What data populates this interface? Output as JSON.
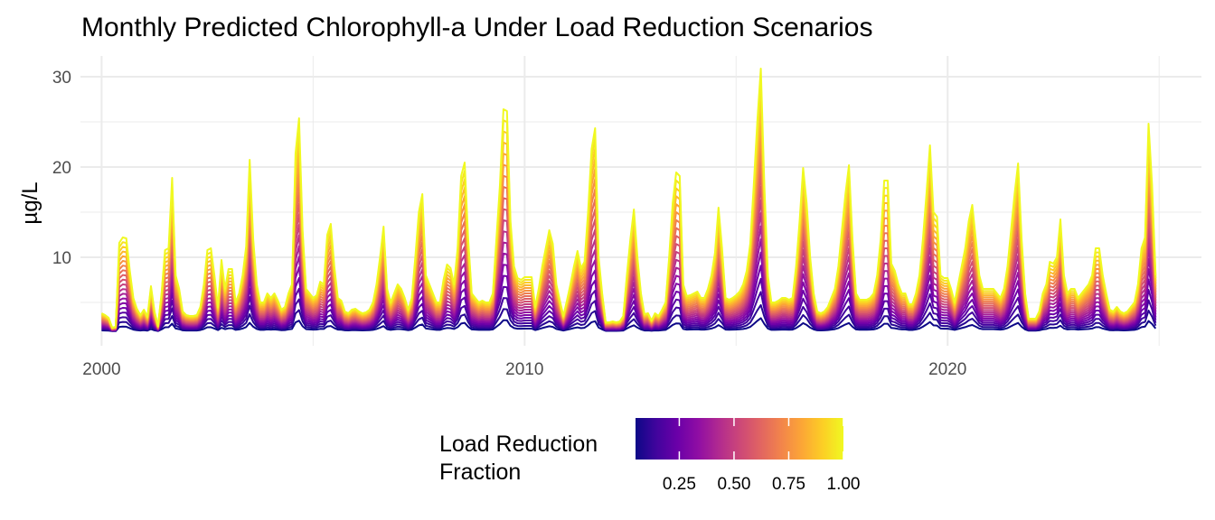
{
  "chart_data": {
    "type": "line",
    "title": "Monthly Predicted Chlorophyll-a Under Load Reduction Scenarios",
    "xlabel": "",
    "ylabel": "µg/L",
    "x_range": [
      1999.5,
      2026.0
    ],
    "ylim": [
      0.2,
      32.3
    ],
    "x_ticks": [
      {
        "value": 2000,
        "label": "2000"
      },
      {
        "value": 2010,
        "label": "2010"
      },
      {
        "value": 2020,
        "label": "2020"
      }
    ],
    "x_minor_ticks": [
      2005,
      2015,
      2025
    ],
    "y_ticks": [
      {
        "value": 10,
        "label": "10"
      },
      {
        "value": 20,
        "label": "20"
      },
      {
        "value": 30,
        "label": "30"
      }
    ],
    "y_minor_ticks": [
      5,
      15,
      25
    ],
    "grid": true,
    "x_start": 2000.0,
    "x_step_years": 0.08333333,
    "baseline_value": 1.8,
    "scenario_fractions": [
      0.05,
      0.1,
      0.15,
      0.2,
      0.25,
      0.3,
      0.35,
      0.4,
      0.45,
      0.5,
      0.55,
      0.6,
      0.65,
      0.7,
      0.75,
      0.8,
      0.85,
      0.9,
      0.95,
      1.0
    ],
    "scenario_model": "value(f) = baseline + (full_load - baseline) * f",
    "full_load_monthly_by_year": {
      "2000": [
        3.8,
        3.6,
        3.3,
        2.2,
        2.3,
        11.6,
        12.2,
        12.1,
        8.5,
        5.5,
        4.3,
        3.6
      ],
      "2001": [
        4.2,
        3.4,
        6.8,
        4.0,
        2.4,
        6.0,
        10.8,
        11.0,
        18.8,
        8.0,
        6.5,
        4.0
      ],
      "2002": [
        3.6,
        3.5,
        3.5,
        3.6,
        4.5,
        7.0,
        10.8,
        11.0,
        8.0,
        4.5,
        9.7,
        6.5
      ],
      "2003": [
        8.7,
        8.7,
        5.0,
        6.0,
        8.0,
        11.2,
        20.8,
        12.0,
        7.0,
        5.0,
        5.0,
        6.0
      ],
      "2004": [
        5.5,
        6.0,
        5.2,
        4.2,
        4.5,
        6.0,
        7.0,
        21.5,
        25.4,
        13.0,
        6.5,
        6.0
      ],
      "2005": [
        5.5,
        5.8,
        7.3,
        7.0,
        12.5,
        13.7,
        9.0,
        5.5,
        5.2,
        4.0,
        3.8,
        4.2
      ],
      "2006": [
        4.3,
        4.0,
        3.8,
        3.9,
        4.2,
        5.0,
        7.0,
        10.0,
        13.4,
        6.5,
        5.0,
        6.0
      ],
      "2007": [
        7.0,
        6.5,
        5.5,
        4.2,
        5.5,
        10.0,
        15.0,
        17.0,
        8.0,
        7.0,
        6.0,
        5.0
      ],
      "2008": [
        5.0,
        7.5,
        9.2,
        8.8,
        7.0,
        11.0,
        19.0,
        20.5,
        12.0,
        6.0,
        5.5,
        5.0
      ],
      "2009": [
        5.2,
        5.0,
        5.0,
        6.0,
        12.0,
        18.0,
        26.4,
        26.2,
        14.0,
        9.0,
        7.7,
        7.5
      ],
      "2010": [
        7.8,
        7.8,
        7.8,
        4.5,
        6.5,
        9.0,
        11.0,
        13.0,
        11.5,
        7.0,
        5.2,
        3.5
      ],
      "2011": [
        5.2,
        7.0,
        9.0,
        10.7,
        8.8,
        9.5,
        15.0,
        22.0,
        24.3,
        10.0,
        6.0,
        2.8
      ],
      "2012": [
        2.8,
        2.9,
        2.8,
        2.9,
        3.5,
        8.0,
        12.0,
        15.3,
        10.0,
        6.0,
        3.7,
        3.8
      ],
      "2013": [
        3.0,
        3.8,
        3.5,
        4.2,
        5.0,
        10.0,
        16.0,
        19.4,
        19.0,
        7.0,
        5.7,
        5.8
      ],
      "2014": [
        6.0,
        6.2,
        5.5,
        5.5,
        6.5,
        8.0,
        10.5,
        15.5,
        11.0,
        5.5,
        5.3,
        5.5
      ],
      "2015": [
        5.8,
        6.2,
        7.0,
        8.5,
        11.5,
        18.0,
        25.0,
        30.9,
        18.0,
        8.0,
        5.0,
        5.0
      ],
      "2016": [
        5.2,
        5.5,
        5.5,
        5.3,
        5.5,
        9.0,
        14.0,
        19.9,
        16.0,
        10.0,
        6.0,
        4.0
      ],
      "2017": [
        3.8,
        4.0,
        4.5,
        5.5,
        6.5,
        9.0,
        13.0,
        17.0,
        20.2,
        12.0,
        6.0,
        5.3
      ],
      "2018": [
        5.3,
        5.3,
        5.5,
        6.0,
        8.0,
        12.0,
        18.5,
        18.5,
        9.3,
        8.5,
        7.0,
        6.0
      ],
      "2019": [
        6.0,
        4.8,
        4.8,
        6.0,
        8.0,
        12.0,
        17.0,
        22.4,
        15.0,
        14.5,
        8.0,
        7.7
      ],
      "2020": [
        7.7,
        6.5,
        5.0,
        7.0,
        9.0,
        11.0,
        14.0,
        15.8,
        12.0,
        8.0,
        6.5,
        6.5
      ],
      "2021": [
        6.5,
        6.5,
        6.0,
        5.5,
        6.5,
        9.0,
        13.0,
        17.0,
        20.4,
        12.0,
        6.0,
        3.2
      ],
      "2022": [
        3.2,
        3.2,
        4.0,
        6.0,
        7.0,
        9.5,
        9.3,
        10.0,
        14.2,
        8.0,
        6.0,
        6.5
      ],
      "2023": [
        6.5,
        5.5,
        6.0,
        6.5,
        7.0,
        8.0,
        11.0,
        11.0,
        8.0,
        6.0,
        4.2,
        4.0
      ],
      "2024": [
        4.5,
        4.0,
        3.8,
        4.0,
        4.5,
        5.0,
        7.0,
        11.0,
        12.2,
        24.8,
        18.0,
        8.0
      ]
    },
    "legend": {
      "title_lines": [
        "Load Reduction",
        "Fraction"
      ],
      "placement": "bottom",
      "type": "colorbar",
      "range": [
        0.05,
        1.0
      ],
      "ticks": [
        {
          "value": 0.25,
          "label": "0.25"
        },
        {
          "value": 0.5,
          "label": "0.50"
        },
        {
          "value": 0.75,
          "label": "0.75"
        },
        {
          "value": 1.0,
          "label": "1.00"
        }
      ],
      "colormap": "plasma",
      "color_stops": [
        "#0d0887",
        "#41049d",
        "#6a00a8",
        "#8f0da4",
        "#b12a90",
        "#cc4778",
        "#e16462",
        "#f2844b",
        "#fca636",
        "#fcce25",
        "#f0f921"
      ]
    }
  }
}
